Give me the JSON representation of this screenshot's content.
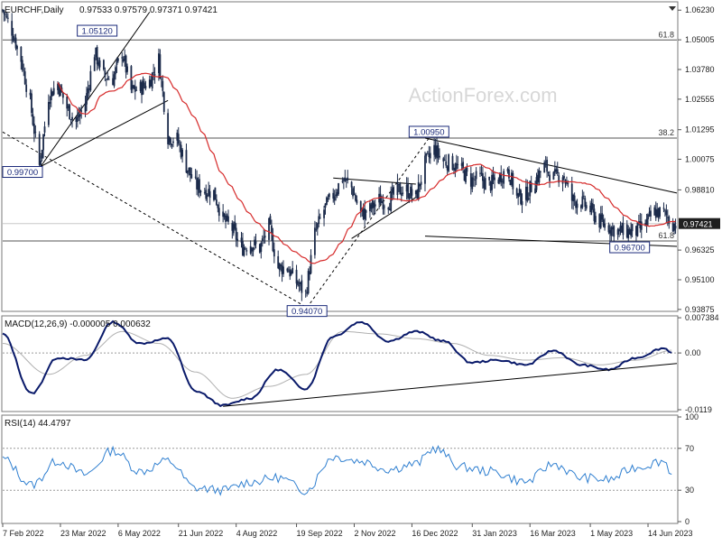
{
  "header": {
    "symbol": "EURCHF,Daily",
    "ohlc": "0.97533 0.97579 0.97371 0.97421",
    "watermark": "ActionForex.com"
  },
  "chart_data": [
    {
      "type": "candlestick",
      "panel": "price",
      "yticks": [
        "1.06230",
        "1.05005",
        "1.03780",
        "1.02555",
        "1.01295",
        "1.00075",
        "0.98810",
        "0.97421",
        "0.96325",
        "0.95100",
        "0.93875"
      ],
      "ylim": [
        0.9387,
        1.065
      ],
      "xlabels": [
        "7 Feb 2022",
        "23 Mar 2022",
        "6 May 2022",
        "21 Jun 2022",
        "4 Aug 2022",
        "19 Sep 2022",
        "2 Nov 2022",
        "16 Dec 2022",
        "31 Jan 2023",
        "16 Mar 2023",
        "1 May 2023",
        "14 Jun 2023"
      ],
      "last_price": "0.97421",
      "annotations": [
        {
          "text": "1.05120",
          "date": "2022-04-20",
          "value": 1.0512
        },
        {
          "text": "0.99700",
          "date": "2022-03-07",
          "value": 0.997
        },
        {
          "text": "0.94070",
          "date": "2022-09-27",
          "value": 0.9407
        },
        {
          "text": "1.00950",
          "date": "2022-12-29",
          "value": 1.0095
        },
        {
          "text": "0.96700",
          "date": "2023-05-31",
          "value": 0.967
        }
      ],
      "fib_levels": [
        {
          "label": "61.8",
          "value": 1.05
        },
        {
          "label": "38.2",
          "value": 1.0095
        },
        {
          "label": "61.8",
          "value": 0.967
        }
      ],
      "price_path": [
        [
          "2022-02-07",
          1.0623
        ],
        [
          "2022-02-14",
          1.054
        ],
        [
          "2022-02-21",
          1.042
        ],
        [
          "2022-02-28",
          1.024
        ],
        [
          "2022-03-07",
          0.998
        ],
        [
          "2022-03-14",
          1.027
        ],
        [
          "2022-03-21",
          1.032
        ],
        [
          "2022-03-28",
          1.022
        ],
        [
          "2022-04-04",
          1.016
        ],
        [
          "2022-04-11",
          1.024
        ],
        [
          "2022-04-18",
          1.045
        ],
        [
          "2022-04-25",
          1.035
        ],
        [
          "2022-05-02",
          1.034
        ],
        [
          "2022-05-09",
          1.045
        ],
        [
          "2022-05-16",
          1.029
        ],
        [
          "2022-05-23",
          1.03
        ],
        [
          "2022-05-30",
          1.033
        ],
        [
          "2022-06-06",
          1.042
        ],
        [
          "2022-06-13",
          1.01
        ],
        [
          "2022-06-20",
          1.009
        ],
        [
          "2022-06-27",
          0.998
        ],
        [
          "2022-07-04",
          0.99
        ],
        [
          "2022-07-11",
          0.988
        ],
        [
          "2022-07-18",
          0.987
        ],
        [
          "2022-07-25",
          0.976
        ],
        [
          "2022-08-01",
          0.972
        ],
        [
          "2022-08-08",
          0.964
        ],
        [
          "2022-08-15",
          0.966
        ],
        [
          "2022-08-22",
          0.964
        ],
        [
          "2022-08-29",
          0.973
        ],
        [
          "2022-09-05",
          0.956
        ],
        [
          "2022-09-12",
          0.956
        ],
        [
          "2022-09-19",
          0.95
        ],
        [
          "2022-09-26",
          0.945
        ],
        [
          "2022-10-03",
          0.97
        ],
        [
          "2022-10-10",
          0.98
        ],
        [
          "2022-10-17",
          0.986
        ],
        [
          "2022-10-24",
          0.993
        ],
        [
          "2022-10-31",
          0.989
        ],
        [
          "2022-11-07",
          0.978
        ],
        [
          "2022-11-14",
          0.98
        ],
        [
          "2022-11-21",
          0.984
        ],
        [
          "2022-11-28",
          0.983
        ],
        [
          "2022-12-05",
          0.988
        ],
        [
          "2022-12-12",
          0.988
        ],
        [
          "2022-12-19",
          0.985
        ],
        [
          "2022-12-26",
          0.999
        ],
        [
          "2023-01-02",
          1.005
        ],
        [
          "2023-01-09",
          1.0
        ],
        [
          "2023-01-16",
          0.999
        ],
        [
          "2023-01-23",
          0.996
        ],
        [
          "2023-01-30",
          0.992
        ],
        [
          "2023-02-06",
          0.993
        ],
        [
          "2023-02-13",
          0.99
        ],
        [
          "2023-02-20",
          0.993
        ],
        [
          "2023-02-27",
          0.997
        ],
        [
          "2023-03-06",
          0.985
        ],
        [
          "2023-03-13",
          0.986
        ],
        [
          "2023-03-20",
          0.992
        ],
        [
          "2023-03-27",
          0.998
        ],
        [
          "2023-04-03",
          0.993
        ],
        [
          "2023-04-10",
          0.995
        ],
        [
          "2023-04-17",
          0.984
        ],
        [
          "2023-04-24",
          0.983
        ],
        [
          "2023-05-01",
          0.98
        ],
        [
          "2023-05-08",
          0.975
        ],
        [
          "2023-05-15",
          0.973
        ],
        [
          "2023-05-22",
          0.971
        ],
        [
          "2023-05-29",
          0.971
        ],
        [
          "2023-06-05",
          0.971
        ],
        [
          "2023-06-12",
          0.974
        ],
        [
          "2023-06-19",
          0.979
        ],
        [
          "2023-06-26",
          0.9785
        ],
        [
          "2023-07-03",
          0.9742
        ]
      ]
    },
    {
      "type": "line",
      "panel": "macd",
      "title": "MACD(12,26,9) -0.000005 0.000632",
      "yticks": [
        "0.007384",
        "0.00",
        "-0.0119"
      ],
      "ylim": [
        -0.0119,
        0.0074
      ],
      "macd_path": [
        [
          "2022-02-07",
          0.004
        ],
        [
          "2022-03-01",
          -0.0085
        ],
        [
          "2022-03-21",
          -0.001
        ],
        [
          "2022-04-11",
          -0.0015
        ],
        [
          "2022-05-02",
          0.0065
        ],
        [
          "2022-05-23",
          0.002
        ],
        [
          "2022-06-13",
          0.003
        ],
        [
          "2022-07-04",
          -0.008
        ],
        [
          "2022-07-25",
          -0.011
        ],
        [
          "2022-08-15",
          -0.0095
        ],
        [
          "2022-09-05",
          -0.0035
        ],
        [
          "2022-09-26",
          -0.0075
        ],
        [
          "2022-10-17",
          0.0035
        ],
        [
          "2022-11-07",
          0.0065
        ],
        [
          "2022-11-28",
          0.0025
        ],
        [
          "2022-12-19",
          0.0045
        ],
        [
          "2023-01-09",
          0.0025
        ],
        [
          "2023-01-30",
          -0.002
        ],
        [
          "2023-02-20",
          -0.0015
        ],
        [
          "2023-03-13",
          -0.0025
        ],
        [
          "2023-04-03",
          0.0005
        ],
        [
          "2023-04-24",
          -0.0025
        ],
        [
          "2023-05-15",
          -0.0035
        ],
        [
          "2023-06-05",
          -0.001
        ],
        [
          "2023-06-26",
          0.001
        ],
        [
          "2023-07-03",
          0.0
        ]
      ],
      "signal_path": [
        [
          "2022-02-07",
          0.002
        ],
        [
          "2022-03-14",
          -0.0045
        ],
        [
          "2022-04-11",
          -0.0005
        ],
        [
          "2022-05-09",
          0.0045
        ],
        [
          "2022-06-06",
          0.002
        ],
        [
          "2022-07-04",
          -0.004
        ],
        [
          "2022-08-01",
          -0.0095
        ],
        [
          "2022-08-29",
          -0.007
        ],
        [
          "2022-09-26",
          -0.0045
        ],
        [
          "2022-10-24",
          0.0045
        ],
        [
          "2022-11-21",
          0.004
        ],
        [
          "2022-12-19",
          0.003
        ],
        [
          "2023-01-16",
          0.002
        ],
        [
          "2023-02-13",
          -0.0005
        ],
        [
          "2023-03-13",
          -0.0015
        ],
        [
          "2023-04-10",
          -0.001
        ],
        [
          "2023-05-08",
          -0.0025
        ],
        [
          "2023-06-05",
          -0.0015
        ],
        [
          "2023-07-03",
          0.0006
        ]
      ]
    },
    {
      "type": "line",
      "panel": "rsi",
      "title": "RSI(14) 44.4797",
      "yticks": [
        "100",
        "70",
        "30",
        "0"
      ],
      "ylim": [
        0,
        100
      ],
      "rsi_path": [
        [
          "2022-02-07",
          60
        ],
        [
          "2022-03-01",
          35
        ],
        [
          "2022-03-21",
          58
        ],
        [
          "2022-04-11",
          45
        ],
        [
          "2022-05-02",
          68
        ],
        [
          "2022-05-23",
          48
        ],
        [
          "2022-06-13",
          58
        ],
        [
          "2022-07-04",
          32
        ],
        [
          "2022-07-25",
          30
        ],
        [
          "2022-08-15",
          38
        ],
        [
          "2022-09-05",
          42
        ],
        [
          "2022-09-26",
          30
        ],
        [
          "2022-10-17",
          62
        ],
        [
          "2022-11-07",
          58
        ],
        [
          "2022-11-28",
          50
        ],
        [
          "2022-12-19",
          55
        ],
        [
          "2023-01-02",
          70
        ],
        [
          "2023-01-23",
          52
        ],
        [
          "2023-02-13",
          48
        ],
        [
          "2023-03-13",
          38
        ],
        [
          "2023-04-03",
          55
        ],
        [
          "2023-04-24",
          42
        ],
        [
          "2023-05-15",
          40
        ],
        [
          "2023-06-05",
          52
        ],
        [
          "2023-06-26",
          58
        ],
        [
          "2023-07-03",
          44.48
        ]
      ]
    }
  ],
  "colors": {
    "background": "#ffffff",
    "grid": "#c8c8c8",
    "candle": "#1b2a4a",
    "moving_average": "#d62a2a",
    "macd": "#0a1a6a",
    "signal": "#b0b0b0",
    "rsi": "#2f7fd0",
    "trendline": "#000000",
    "label_box_border": "#1b2a7a",
    "price_tag_bg": "#1f1f1f",
    "watermark": "#d7d7d7"
  }
}
